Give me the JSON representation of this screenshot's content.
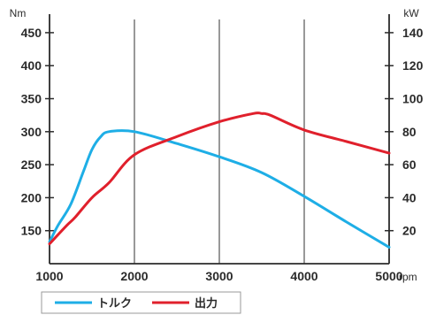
{
  "chart_data": {
    "type": "line",
    "title": "",
    "x_unit": "rpm",
    "y_left_unit": "Nm",
    "y_right_unit": "kW",
    "xlim": [
      1000,
      5000
    ],
    "y_left_lim": [
      100,
      470
    ],
    "y_right_lim": [
      0,
      148
    ],
    "x_ticks": [
      "1000",
      "2000",
      "3000",
      "4000",
      "5000"
    ],
    "y_left_ticks": [
      "150",
      "200",
      "250",
      "300",
      "350",
      "400",
      "450"
    ],
    "y_right_ticks": [
      "20",
      "40",
      "60",
      "80",
      "100",
      "120",
      "140"
    ],
    "grid": "vertical",
    "legend_position": "bottom-left",
    "colors": {
      "torque": "#1eaee6",
      "power": "#e0202c",
      "axis": "#2b2b2b",
      "grid": "#555555"
    },
    "series": [
      {
        "name": "トルク",
        "axis": "left",
        "color": "#1eaee6",
        "x": [
          1000,
          1100,
          1250,
          1400,
          1500,
          1600,
          1700,
          2000,
          2500,
          3000,
          3500,
          4000,
          4500,
          5000
        ],
        "y": [
          133,
          158,
          190,
          240,
          273,
          292,
          300,
          300,
          282,
          262,
          238,
          202,
          163,
          125
        ]
      },
      {
        "name": "出力",
        "axis": "right",
        "color": "#e0202c",
        "x": [
          1000,
          1200,
          1300,
          1500,
          1700,
          2000,
          2500,
          3000,
          3400,
          3500,
          3600,
          4000,
          4500,
          5000
        ],
        "y": [
          12,
          23,
          28,
          40,
          49,
          66,
          77,
          86,
          91,
          91,
          90,
          81,
          74,
          67
        ]
      }
    ]
  }
}
